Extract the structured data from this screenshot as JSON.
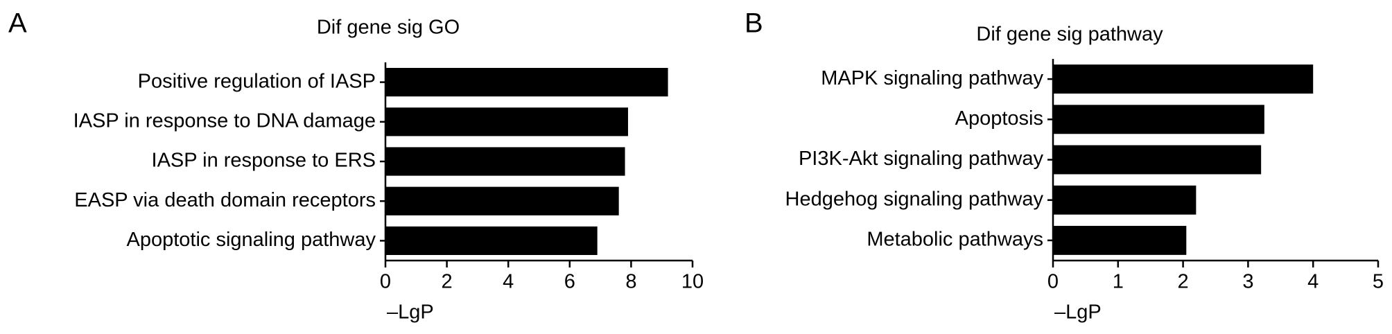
{
  "chart_data": [
    {
      "type": "barh",
      "panel_label": "A",
      "title": "Dif gene sig GO",
      "categories": [
        "Positive regulation of IASP",
        "IASP in response to DNA damage",
        "IASP in response to ERS",
        "EASP via death domain receptors",
        "Apoptotic signaling pathway"
      ],
      "values": [
        9.2,
        7.9,
        7.8,
        7.6,
        6.9
      ],
      "color": "#000000",
      "xlabel": "–LgP",
      "xlim": [
        0,
        10
      ],
      "xticks": [
        0,
        2,
        4,
        6,
        8,
        10
      ]
    },
    {
      "type": "barh",
      "panel_label": "B",
      "title": "Dif gene sig pathway",
      "categories": [
        "MAPK signaling pathway",
        "Apoptosis",
        "PI3K-Akt signaling pathway",
        "Hedgehog signaling pathway",
        "Metabolic pathways"
      ],
      "values": [
        4.0,
        3.25,
        3.2,
        2.2,
        2.05
      ],
      "color": "#000000",
      "xlabel": "–LgP",
      "xlim": [
        0,
        5
      ],
      "xticks": [
        0,
        1,
        2,
        3,
        4,
        5
      ]
    }
  ]
}
